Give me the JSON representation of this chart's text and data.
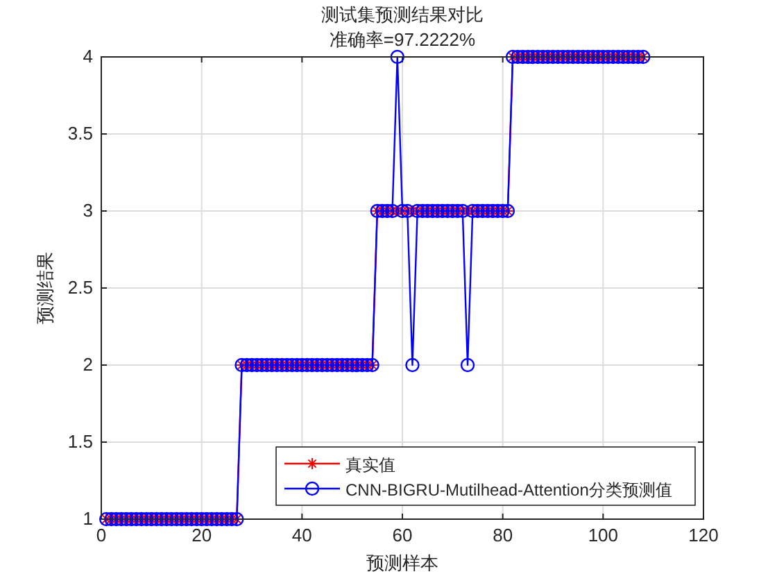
{
  "chart_data": {
    "type": "line",
    "title": "测试集预测结果对比",
    "subtitle": "准确率=97.2222%",
    "xlabel": "预测样本",
    "ylabel": "预测结果",
    "x": [
      1,
      2,
      3,
      4,
      5,
      6,
      7,
      8,
      9,
      10,
      11,
      12,
      13,
      14,
      15,
      16,
      17,
      18,
      19,
      20,
      21,
      22,
      23,
      24,
      25,
      26,
      27,
      28,
      29,
      30,
      31,
      32,
      33,
      34,
      35,
      36,
      37,
      38,
      39,
      40,
      41,
      42,
      43,
      44,
      45,
      46,
      47,
      48,
      49,
      50,
      51,
      52,
      53,
      54,
      55,
      56,
      57,
      58,
      59,
      60,
      61,
      62,
      63,
      64,
      65,
      66,
      67,
      68,
      69,
      70,
      71,
      72,
      73,
      74,
      75,
      76,
      77,
      78,
      79,
      80,
      81,
      82,
      83,
      84,
      85,
      86,
      87,
      88,
      89,
      90,
      91,
      92,
      93,
      94,
      95,
      96,
      97,
      98,
      99,
      100,
      101,
      102,
      103,
      104,
      105,
      106,
      107,
      108
    ],
    "series": [
      {
        "name": "真实值",
        "color": "#ff0000",
        "marker": "cross",
        "values": [
          1,
          1,
          1,
          1,
          1,
          1,
          1,
          1,
          1,
          1,
          1,
          1,
          1,
          1,
          1,
          1,
          1,
          1,
          1,
          1,
          1,
          1,
          1,
          1,
          1,
          1,
          1,
          2,
          2,
          2,
          2,
          2,
          2,
          2,
          2,
          2,
          2,
          2,
          2,
          2,
          2,
          2,
          2,
          2,
          2,
          2,
          2,
          2,
          2,
          2,
          2,
          2,
          2,
          2,
          3,
          3,
          3,
          3,
          3,
          3,
          3,
          3,
          3,
          3,
          3,
          3,
          3,
          3,
          3,
          3,
          3,
          3,
          3,
          3,
          3,
          3,
          3,
          3,
          3,
          3,
          3,
          4,
          4,
          4,
          4,
          4,
          4,
          4,
          4,
          4,
          4,
          4,
          4,
          4,
          4,
          4,
          4,
          4,
          4,
          4,
          4,
          4,
          4,
          4,
          4,
          4,
          4,
          4
        ]
      },
      {
        "name": "CNN-BIGRU-Mutilhead-Attention分类预测值",
        "color": "#0000ff",
        "marker": "circle",
        "values": [
          1,
          1,
          1,
          1,
          1,
          1,
          1,
          1,
          1,
          1,
          1,
          1,
          1,
          1,
          1,
          1,
          1,
          1,
          1,
          1,
          1,
          1,
          1,
          1,
          1,
          1,
          1,
          2,
          2,
          2,
          2,
          2,
          2,
          2,
          2,
          2,
          2,
          2,
          2,
          2,
          2,
          2,
          2,
          2,
          2,
          2,
          2,
          2,
          2,
          2,
          2,
          2,
          2,
          2,
          3,
          3,
          3,
          3,
          4,
          3,
          3,
          2,
          3,
          3,
          3,
          3,
          3,
          3,
          3,
          3,
          3,
          3,
          2,
          3,
          3,
          3,
          3,
          3,
          3,
          3,
          3,
          4,
          4,
          4,
          4,
          4,
          4,
          4,
          4,
          4,
          4,
          4,
          4,
          4,
          4,
          4,
          4,
          4,
          4,
          4,
          4,
          4,
          4,
          4,
          4,
          4,
          4,
          4
        ]
      }
    ],
    "xlim": [
      0,
      120
    ],
    "xticks": [
      0,
      20,
      40,
      60,
      80,
      100,
      120
    ],
    "ylim": [
      1,
      4
    ],
    "yticks": [
      1,
      1.5,
      2,
      2.5,
      3,
      3.5,
      4
    ],
    "grid": true,
    "legend": "bottom right",
    "line_style": "solid"
  }
}
